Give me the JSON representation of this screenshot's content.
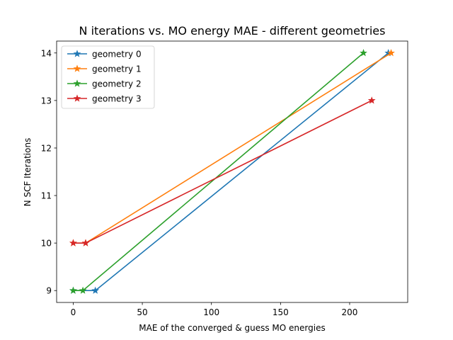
{
  "chart_data": {
    "type": "line",
    "title": "N iterations vs. MO energy MAE - different geometries",
    "xlabel": "MAE of the converged & guess MO energies",
    "ylabel": "N SCF Iterations",
    "xlim": [
      -12,
      242
    ],
    "ylim": [
      8.75,
      14.25
    ],
    "xticks": [
      0,
      50,
      100,
      150,
      200
    ],
    "yticks": [
      9,
      10,
      11,
      12,
      13,
      14
    ],
    "grid": false,
    "legend_position": "upper-left",
    "marker": "star",
    "series": [
      {
        "name": "geometry 0",
        "color": "#1f77b4",
        "x": [
          0,
          16,
          228
        ],
        "y": [
          9,
          9,
          14
        ]
      },
      {
        "name": "geometry 1",
        "color": "#ff7f0e",
        "x": [
          0,
          9,
          230
        ],
        "y": [
          10,
          10,
          14
        ]
      },
      {
        "name": "geometry 2",
        "color": "#2ca02c",
        "x": [
          0,
          7,
          210
        ],
        "y": [
          9,
          9,
          14
        ]
      },
      {
        "name": "geometry 3",
        "color": "#d62728",
        "x": [
          0,
          9,
          216
        ],
        "y": [
          10,
          10,
          13
        ]
      }
    ]
  }
}
